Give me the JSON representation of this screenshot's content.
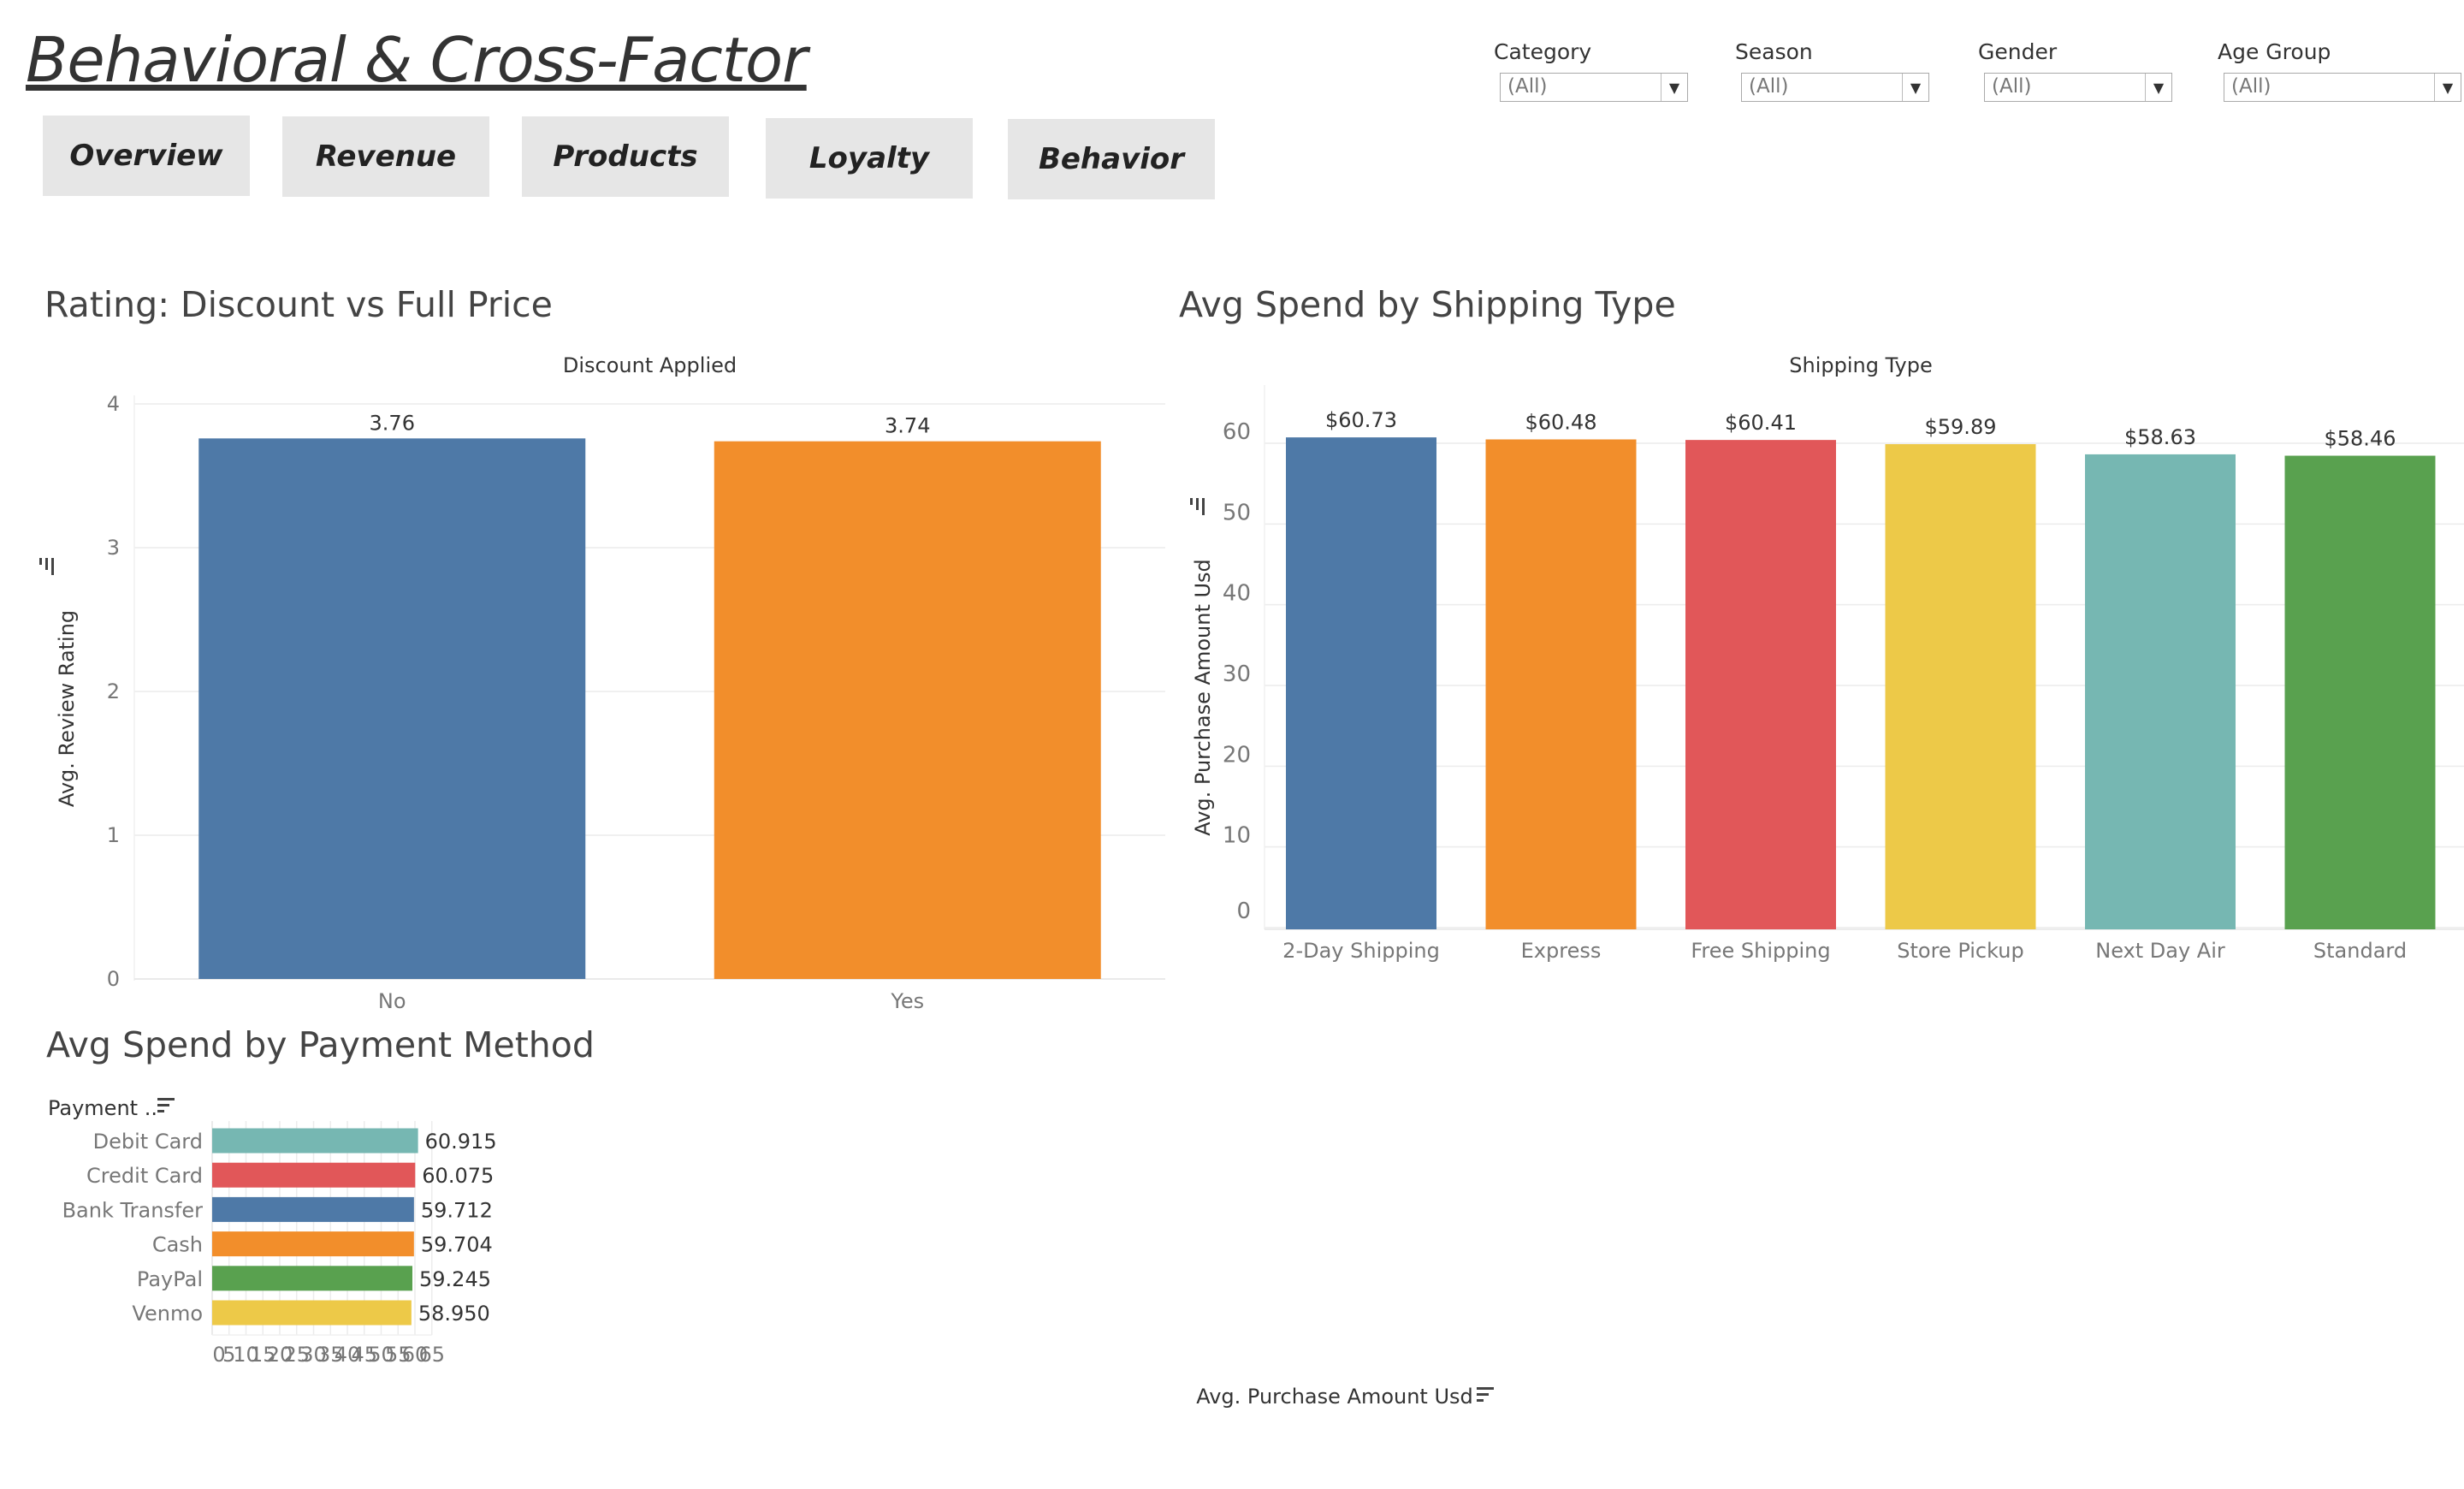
{
  "dashboard_title": "Behavioral & Cross-Factor",
  "nav": [
    {
      "label": "Overview"
    },
    {
      "label": "Revenue"
    },
    {
      "label": "Products"
    },
    {
      "label": "Loyalty"
    },
    {
      "label": "Behavior"
    }
  ],
  "filters": [
    {
      "label": "Category",
      "value": "(All)"
    },
    {
      "label": "Season",
      "value": "(All)"
    },
    {
      "label": "Gender",
      "value": "(All)"
    },
    {
      "label": "Age Group",
      "value": "(All)"
    }
  ],
  "colors": {
    "blue": "#4e79a7",
    "orange": "#f28e2b",
    "red": "#e15759",
    "yellow": "#edc948",
    "teal": "#76b7b2",
    "green": "#59a14f"
  },
  "chart_data": [
    {
      "type": "bar",
      "title": "Rating: Discount vs Full Price",
      "header": "Discount Applied",
      "ylabel": "Avg. Review Rating",
      "categories": [
        "No",
        "Yes"
      ],
      "values": [
        3.76,
        3.74
      ],
      "value_labels": [
        "3.76",
        "3.74"
      ],
      "colors": [
        "#4e79a7",
        "#f28e2b"
      ],
      "ylim": [
        0,
        4
      ],
      "yticks": [
        0,
        1,
        2,
        3,
        4
      ],
      "grid": true
    },
    {
      "type": "bar",
      "title": "Avg Spend by Shipping Type",
      "header": "Shipping Type",
      "ylabel": "Avg. Purchase Amount Usd",
      "categories": [
        "2-Day Shipping",
        "Express",
        "Free Shipping",
        "Store Pickup",
        "Next Day Air",
        "Standard"
      ],
      "values": [
        60.73,
        60.48,
        60.41,
        59.89,
        58.63,
        58.46
      ],
      "value_labels": [
        "$60.73",
        "$60.48",
        "$60.41",
        "$59.89",
        "$58.63",
        "$58.46"
      ],
      "colors": [
        "#4e79a7",
        "#f28e2b",
        "#e15759",
        "#edc948",
        "#76b7b2",
        "#59a14f"
      ],
      "ylim": [
        0,
        60
      ],
      "yticks": [
        0,
        10,
        20,
        30,
        40,
        50,
        60
      ],
      "grid": true
    },
    {
      "type": "bar",
      "orientation": "horizontal",
      "title": "Avg Spend by Payment Method",
      "category_header": "Payment ..",
      "xlabel": "Avg. Purchase Amount Usd",
      "categories": [
        "Debit Card",
        "Credit Card",
        "Bank Transfer",
        "Cash",
        "PayPal",
        "Venmo"
      ],
      "values": [
        60.915,
        60.075,
        59.712,
        59.704,
        59.245,
        58.95
      ],
      "value_labels": [
        "60.915",
        "60.075",
        "59.712",
        "59.704",
        "59.245",
        "58.950"
      ],
      "colors": [
        "#76b7b2",
        "#e15759",
        "#4e79a7",
        "#f28e2b",
        "#59a14f",
        "#edc948"
      ],
      "xlim": [
        0,
        65
      ],
      "xticks": [
        0,
        5,
        10,
        15,
        20,
        25,
        30,
        35,
        40,
        45,
        50,
        55,
        60,
        65
      ],
      "grid": true
    }
  ]
}
